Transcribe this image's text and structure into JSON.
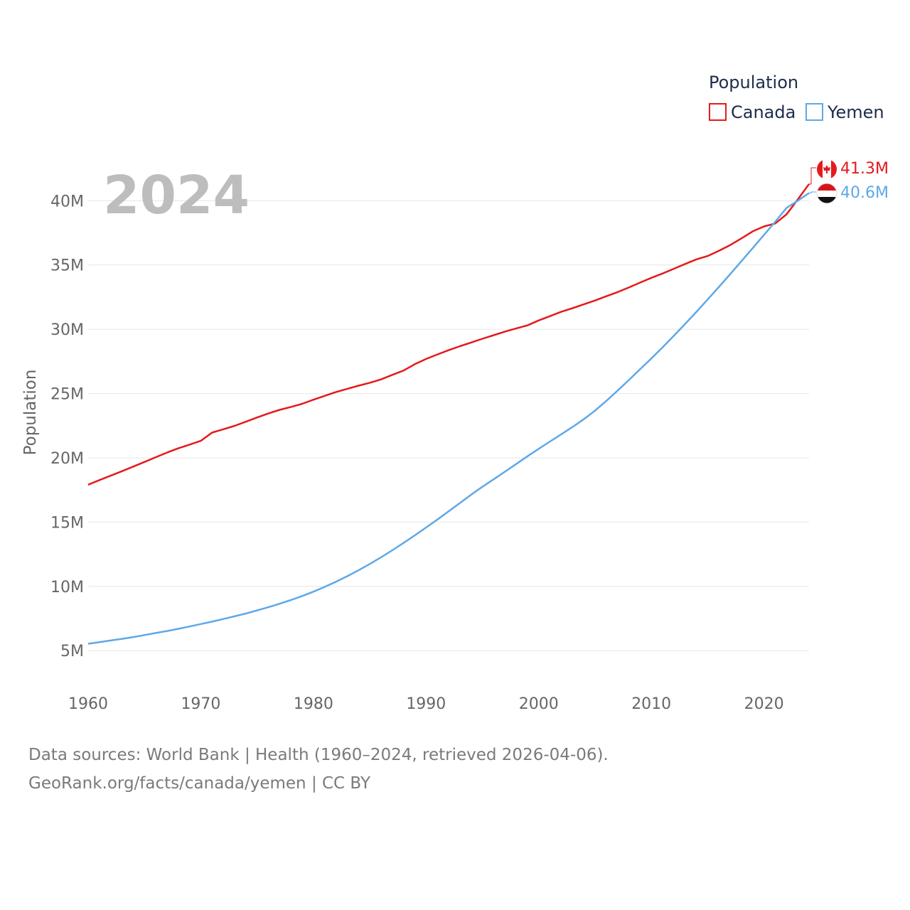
{
  "chart_data": {
    "type": "line",
    "year_label": "2024",
    "ylabel": "Population",
    "legend_title": "Population",
    "legend_position": "top-right",
    "xlim": [
      1960,
      2024
    ],
    "ylim": [
      2800000,
      44000000
    ],
    "x_ticks": [
      1960,
      1970,
      1980,
      1990,
      2000,
      2010,
      2020
    ],
    "x_tick_labels": [
      "1960",
      "1970",
      "1980",
      "1990",
      "2000",
      "2010",
      "2020"
    ],
    "y_ticks": [
      5000000,
      10000000,
      15000000,
      20000000,
      25000000,
      30000000,
      35000000,
      40000000
    ],
    "y_tick_labels": [
      "5M",
      "10M",
      "15M",
      "20M",
      "25M",
      "30M",
      "35M",
      "40M"
    ],
    "grid": true,
    "x": [
      1960,
      1961,
      1962,
      1963,
      1964,
      1965,
      1966,
      1967,
      1968,
      1969,
      1970,
      1971,
      1972,
      1973,
      1974,
      1975,
      1976,
      1977,
      1978,
      1979,
      1980,
      1981,
      1982,
      1983,
      1984,
      1985,
      1986,
      1987,
      1988,
      1989,
      1990,
      1991,
      1992,
      1993,
      1994,
      1995,
      1996,
      1997,
      1998,
      1999,
      2000,
      2001,
      2002,
      2003,
      2004,
      2005,
      2006,
      2007,
      2008,
      2009,
      2010,
      2011,
      2012,
      2013,
      2014,
      2015,
      2016,
      2017,
      2018,
      2019,
      2020,
      2021,
      2022,
      2023,
      2024
    ],
    "series": [
      {
        "name": "Canada",
        "color": "#e41a1c",
        "end_label": "41.3M",
        "values": [
          17910000,
          18270000,
          18610000,
          18960000,
          19320000,
          19680000,
          20050000,
          20410000,
          20740000,
          21030000,
          21320000,
          21960000,
          22220000,
          22490000,
          22810000,
          23140000,
          23450000,
          23730000,
          23960000,
          24200000,
          24520000,
          24820000,
          25120000,
          25370000,
          25610000,
          25840000,
          26100000,
          26450000,
          26790000,
          27280000,
          27690000,
          28040000,
          28370000,
          28680000,
          28970000,
          29260000,
          29540000,
          29820000,
          30070000,
          30300000,
          30690000,
          31020000,
          31360000,
          31640000,
          31940000,
          32240000,
          32570000,
          32890000,
          33250000,
          33630000,
          34000000,
          34340000,
          34710000,
          35080000,
          35440000,
          35700000,
          36110000,
          36550000,
          37070000,
          37620000,
          38000000,
          38230000,
          38940000,
          40100000,
          41300000
        ]
      },
      {
        "name": "Yemen",
        "color": "#5ea8e8",
        "end_label": "40.6M",
        "values": [
          5540000,
          5660000,
          5790000,
          5920000,
          6060000,
          6210000,
          6370000,
          6530000,
          6700000,
          6880000,
          7070000,
          7260000,
          7460000,
          7670000,
          7890000,
          8130000,
          8380000,
          8650000,
          8940000,
          9250000,
          9590000,
          9960000,
          10360000,
          10790000,
          11250000,
          11740000,
          12260000,
          12810000,
          13380000,
          13970000,
          14580000,
          15200000,
          15840000,
          16480000,
          17130000,
          17750000,
          18330000,
          18920000,
          19520000,
          20120000,
          20700000,
          21270000,
          21830000,
          22400000,
          23000000,
          23670000,
          24430000,
          25230000,
          26050000,
          26890000,
          27730000,
          28600000,
          29500000,
          30420000,
          31360000,
          32320000,
          33300000,
          34290000,
          35300000,
          36320000,
          37340000,
          38370000,
          39440000,
          40000000,
          40600000
        ]
      }
    ]
  },
  "footer": {
    "line1": "Data sources: World Bank | Health (1960–2024, retrieved 2026-04-06).",
    "line2": "GeoRank.org/facts/canada/yemen | CC BY"
  }
}
